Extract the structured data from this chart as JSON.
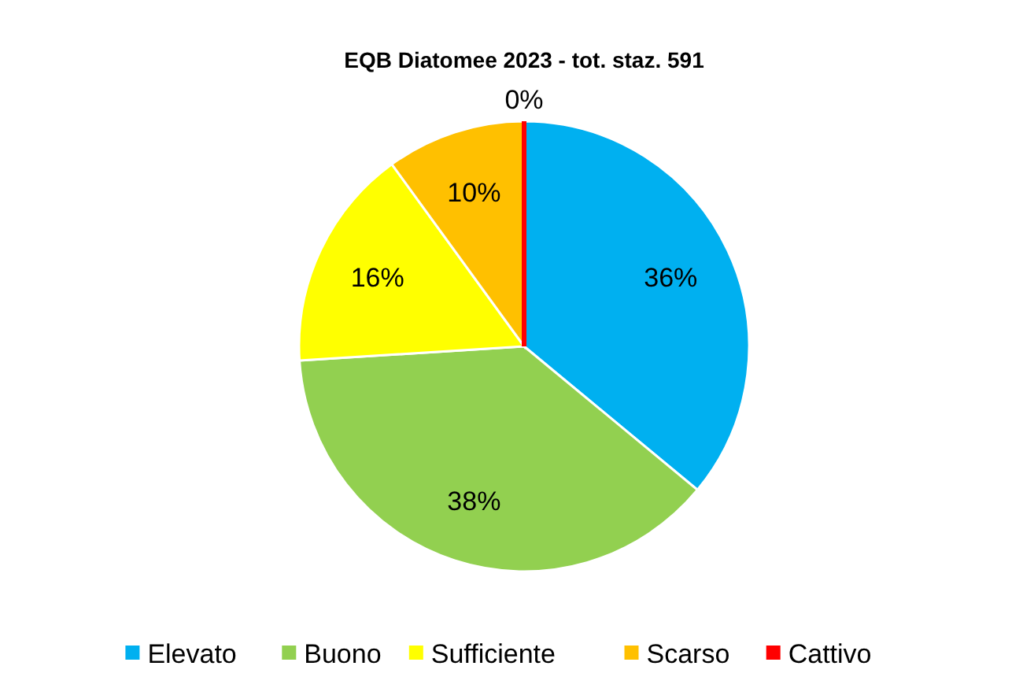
{
  "chart_data": {
    "type": "pie",
    "title": "EQB Diatomee 2023 - tot. staz. 591",
    "categories": [
      "Elevato",
      "Buono",
      "Sufficiente",
      "Scarso",
      "Cattivo"
    ],
    "values": [
      36,
      38,
      16,
      10,
      0
    ],
    "colors": [
      "#00b0f0",
      "#92d050",
      "#ffff00",
      "#ffc000",
      "#ff0000"
    ],
    "value_labels": [
      "36%",
      "38%",
      "16%",
      "10%",
      "0%"
    ],
    "legend": "bottom"
  }
}
